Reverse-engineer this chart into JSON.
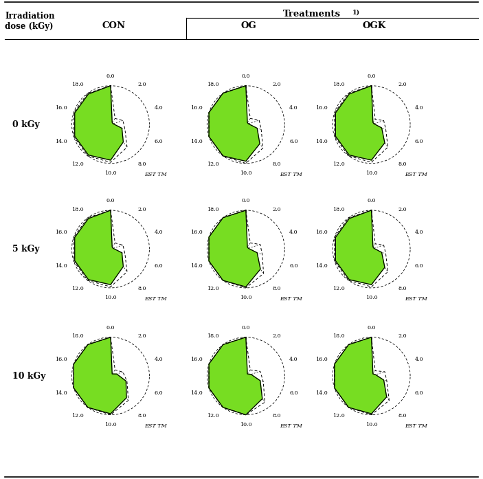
{
  "col_headers": [
    "CON",
    "OG",
    "OGK"
  ],
  "row_headers": [
    "0 kGy",
    "5 kGy",
    "10 kGy"
  ],
  "main_label": "Irradiation\ndose (kGy)",
  "superscript_label": "Treatments",
  "superscript": "1)",
  "axis_labels": [
    "0.0",
    "2.0",
    "4.0",
    "6.0",
    "8.0",
    "10.0",
    "12.0",
    "14.0",
    "16.0",
    "18.0"
  ],
  "axis_max": 18.0,
  "est_tm_label": "EST TM",
  "fill_color": "#77DD22",
  "background_color": "#FFFFFF",
  "radar_data": {
    "CON_0": [
      18.0,
      1.2,
      1.2,
      5.5,
      10.0,
      16.5,
      17.5,
      17.5,
      17.5,
      17.5
    ],
    "OG_0": [
      18.0,
      1.2,
      1.2,
      5.5,
      11.0,
      17.0,
      18.0,
      18.0,
      18.0,
      18.0
    ],
    "OGK_0": [
      18.0,
      1.2,
      1.2,
      5.0,
      10.5,
      16.5,
      17.5,
      17.5,
      17.5,
      17.5
    ],
    "CON_5": [
      18.0,
      1.2,
      1.2,
      5.5,
      10.0,
      16.5,
      17.5,
      17.5,
      17.5,
      17.5
    ],
    "OG_5": [
      18.0,
      1.2,
      1.2,
      5.5,
      11.5,
      17.5,
      18.0,
      18.0,
      18.0,
      18.0
    ],
    "OGK_5": [
      18.0,
      1.2,
      1.2,
      5.0,
      10.5,
      16.5,
      17.5,
      17.5,
      17.5,
      17.5
    ],
    "CON_10": [
      18.0,
      1.2,
      3.0,
      7.5,
      12.5,
      17.5,
      18.0,
      18.0,
      18.0,
      18.0
    ],
    "OG_10": [
      18.0,
      1.2,
      2.5,
      7.0,
      13.0,
      18.0,
      18.0,
      18.0,
      18.0,
      18.0
    ],
    "OGK_10": [
      18.0,
      1.2,
      2.0,
      6.0,
      12.0,
      17.5,
      18.0,
      18.0,
      18.0,
      18.0
    ]
  },
  "dashed_data": {
    "CON_0": [
      18.0,
      3.5,
      6.0,
      7.0,
      13.0,
      17.5,
      18.0,
      18.0,
      18.0,
      18.0
    ],
    "OG_0": [
      18.0,
      3.5,
      6.5,
      7.5,
      13.5,
      18.0,
      18.0,
      18.0,
      18.0,
      18.0
    ],
    "OGK_0": [
      18.0,
      3.0,
      6.0,
      7.0,
      13.0,
      17.5,
      18.0,
      18.0,
      18.0,
      18.0
    ],
    "CON_5": [
      18.0,
      3.5,
      6.0,
      7.0,
      13.0,
      17.5,
      18.0,
      18.0,
      18.0,
      18.0
    ],
    "OG_5": [
      18.0,
      3.5,
      7.0,
      8.0,
      14.0,
      18.0,
      18.0,
      18.0,
      18.0,
      18.0
    ],
    "OGK_5": [
      18.0,
      3.0,
      6.0,
      7.0,
      13.0,
      17.5,
      18.0,
      18.0,
      18.0,
      18.0
    ],
    "CON_10": [
      18.0,
      3.5,
      6.0,
      8.0,
      14.0,
      18.0,
      18.0,
      18.0,
      18.0,
      18.0
    ],
    "OG_10": [
      18.0,
      3.5,
      7.0,
      8.5,
      15.0,
      18.0,
      18.0,
      18.0,
      18.0,
      18.0
    ],
    "OGK_10": [
      18.0,
      3.0,
      6.5,
      7.5,
      14.0,
      18.0,
      18.0,
      18.0,
      18.0,
      18.0
    ]
  }
}
